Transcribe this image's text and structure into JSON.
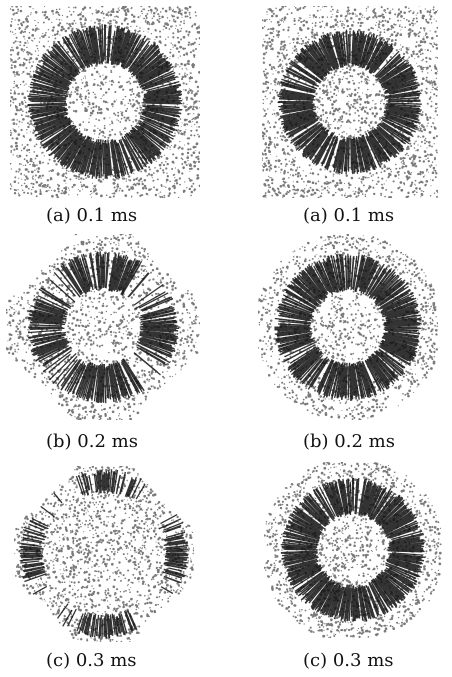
{
  "figure": {
    "panels": [
      {
        "column": "left",
        "caption": "(a)  0.1  ms",
        "pattern": "ring"
      },
      {
        "column": "right",
        "caption": "(a)  0.1  ms",
        "pattern": "ring"
      },
      {
        "column": "left",
        "caption": "(b)  0.2  ms",
        "pattern": "broken-ring"
      },
      {
        "column": "right",
        "caption": "(b)  0.2  ms",
        "pattern": "ring"
      },
      {
        "column": "left",
        "caption": "(c)  0.3  ms",
        "pattern": "four-lobe"
      },
      {
        "column": "right",
        "caption": "(c)  0.3  ms",
        "pattern": "ring"
      }
    ],
    "colors": {
      "speckle": "#7a7a7a",
      "dark": "#111111",
      "background": "#ffffff"
    }
  }
}
